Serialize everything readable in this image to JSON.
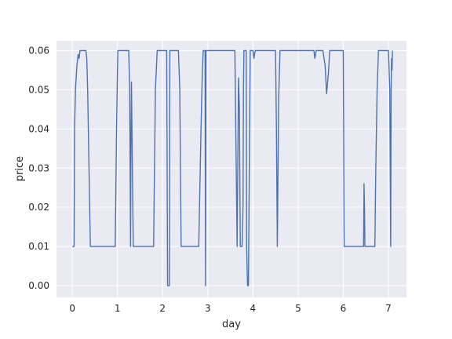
{
  "chart_data": {
    "type": "line",
    "xlabel": "day",
    "ylabel": "price",
    "xlim": [
      -0.35,
      7.4
    ],
    "ylim": [
      -0.003,
      0.0625
    ],
    "xticks": [
      0,
      1,
      2,
      3,
      4,
      5,
      6,
      7
    ],
    "yticks": [
      0.0,
      0.01,
      0.02,
      0.03,
      0.04,
      0.05,
      0.06
    ],
    "ytick_labels": [
      "0.00",
      "0.01",
      "0.02",
      "0.03",
      "0.04",
      "0.05",
      "0.06"
    ],
    "grid": true,
    "background_color": "#eaeaf2",
    "grid_color": "#ffffff",
    "line_color": "#4c72b0",
    "series": [
      {
        "x": [
          0.0,
          0.04,
          0.05,
          0.07,
          0.1,
          0.13,
          0.15,
          0.16,
          0.17,
          0.19,
          0.22,
          0.3,
          0.32,
          0.34,
          0.37,
          0.4,
          0.95,
          0.98,
          1.0,
          1.01,
          1.03,
          1.25,
          1.27,
          1.29,
          1.3,
          1.31,
          1.33,
          1.35,
          1.8,
          1.84,
          1.88,
          1.92,
          2.05,
          2.09,
          2.1,
          2.11,
          2.15,
          2.16,
          2.2,
          2.35,
          2.38,
          2.41,
          2.8,
          2.85,
          2.87,
          2.88,
          2.9,
          2.94,
          2.95,
          2.96,
          2.99,
          3.01,
          3.04,
          3.06,
          3.08,
          3.6,
          3.63,
          3.65,
          3.68,
          3.7,
          3.72,
          3.74,
          3.76,
          3.78,
          3.79,
          3.8,
          3.82,
          3.85,
          3.86,
          3.88,
          3.89,
          3.9,
          3.94,
          3.97,
          4.0,
          4.02,
          4.05,
          4.1,
          4.5,
          4.52,
          4.54,
          4.57,
          4.6,
          5.35,
          5.37,
          5.4,
          5.55,
          5.6,
          5.63,
          5.67,
          5.7,
          5.72,
          5.75,
          6.0,
          6.02,
          6.45,
          6.46,
          6.47,
          6.48,
          6.5,
          6.7,
          6.72,
          6.75,
          6.78,
          6.82,
          6.85,
          7.0,
          7.03,
          7.05,
          7.06,
          7.07,
          7.08,
          7.09
        ],
        "y": [
          0.01,
          0.01,
          0.04,
          0.05,
          0.056,
          0.059,
          0.058,
          0.059,
          0.06,
          0.06,
          0.06,
          0.06,
          0.058,
          0.05,
          0.03,
          0.01,
          0.01,
          0.04,
          0.055,
          0.06,
          0.06,
          0.06,
          0.05,
          0.01,
          0.04,
          0.052,
          0.03,
          0.01,
          0.01,
          0.05,
          0.06,
          0.06,
          0.06,
          0.06,
          0.03,
          0.0,
          0.0,
          0.06,
          0.06,
          0.06,
          0.05,
          0.01,
          0.01,
          0.04,
          0.05,
          0.055,
          0.06,
          0.06,
          0.0,
          0.06,
          0.06,
          0.06,
          0.06,
          0.06,
          0.06,
          0.06,
          0.03,
          0.01,
          0.053,
          0.045,
          0.01,
          0.01,
          0.01,
          0.02,
          0.05,
          0.06,
          0.06,
          0.06,
          0.01,
          0.0,
          0.0,
          0.0,
          0.06,
          0.06,
          0.06,
          0.058,
          0.06,
          0.06,
          0.06,
          0.04,
          0.01,
          0.048,
          0.06,
          0.06,
          0.058,
          0.06,
          0.06,
          0.056,
          0.049,
          0.054,
          0.06,
          0.06,
          0.06,
          0.06,
          0.01,
          0.01,
          0.026,
          0.02,
          0.01,
          0.01,
          0.01,
          0.03,
          0.05,
          0.06,
          0.06,
          0.06,
          0.06,
          0.05,
          0.01,
          0.05,
          0.058,
          0.055,
          0.06
        ]
      }
    ]
  }
}
